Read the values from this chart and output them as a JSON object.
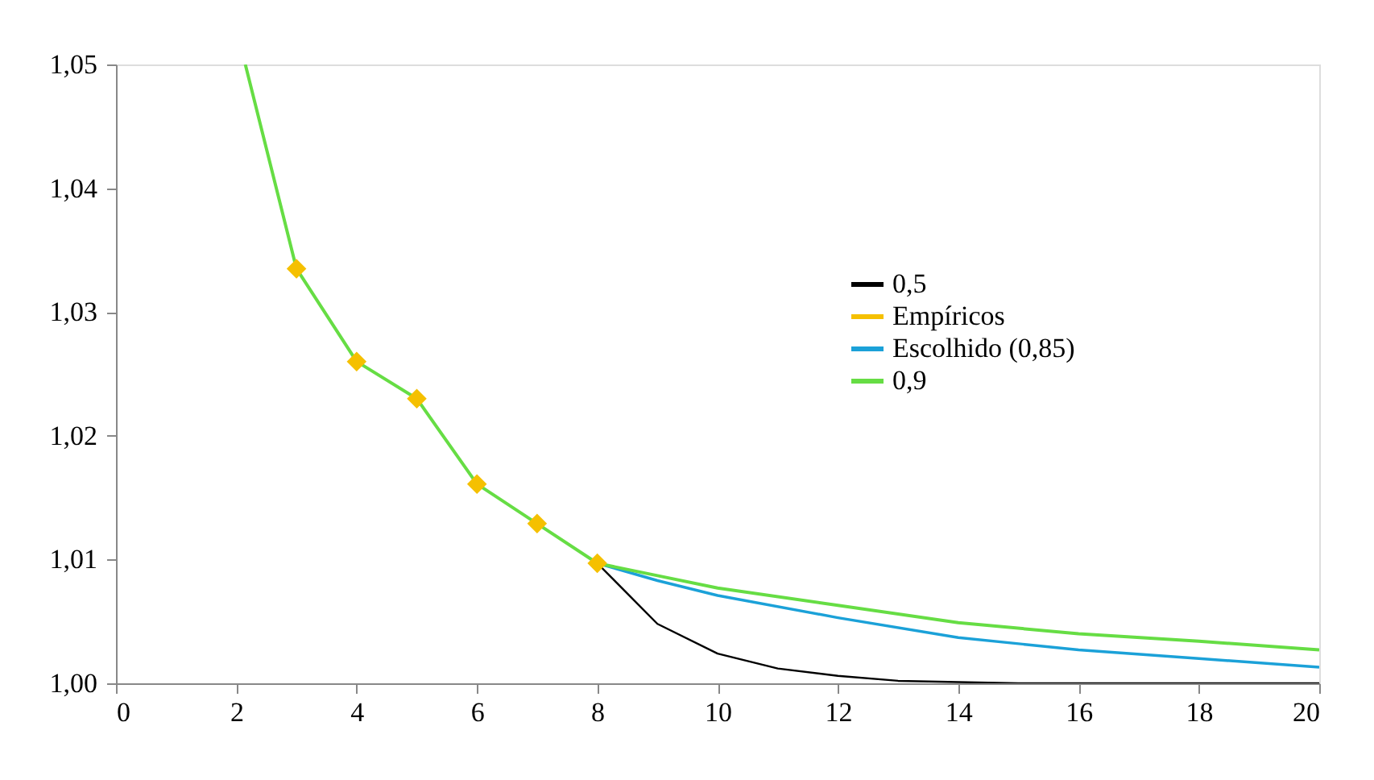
{
  "chart_data": {
    "type": "line",
    "legend": "right",
    "grid": false,
    "xlim": [
      0,
      20
    ],
    "xticks": [
      0,
      2,
      4,
      6,
      8,
      10,
      12,
      14,
      16,
      18,
      20
    ],
    "ylim": [
      1.0,
      1.05
    ],
    "yticks": [
      {
        "value": 1.0,
        "label": "1,00"
      },
      {
        "value": 1.01,
        "label": "1,01"
      },
      {
        "value": 1.02,
        "label": "1,02"
      },
      {
        "value": 1.03,
        "label": "1,03"
      },
      {
        "value": 1.04,
        "label": "1,04"
      },
      {
        "value": 1.05,
        "label": "1,05"
      }
    ],
    "series": [
      {
        "name": "0,5",
        "color": "#000000",
        "x": [
          8,
          9,
          10,
          11,
          12,
          13,
          14,
          15,
          16,
          17,
          18,
          19,
          20
        ],
        "values": [
          1.0097,
          1.0048,
          1.0024,
          1.0012,
          1.0006,
          1.0002,
          1.0001,
          1.0,
          1.0,
          1.0,
          1.0,
          1.0,
          1.0
        ]
      },
      {
        "name": "Empíricos",
        "type": "scatter",
        "color": "#f5c000",
        "marker": "diamond",
        "x": [
          3,
          4,
          5,
          6,
          7,
          8
        ],
        "values": [
          1.0335,
          1.026,
          1.023,
          1.0161,
          1.0129,
          1.0097
        ]
      },
      {
        "name": "Escolhido (0,85)",
        "color": "#1ba1d8",
        "x": [
          8,
          9,
          10,
          12,
          14,
          16,
          18,
          20
        ],
        "values": [
          1.0097,
          1.0083,
          1.0071,
          1.0053,
          1.0037,
          1.0027,
          1.002,
          1.0013
        ]
      },
      {
        "name": "0,9",
        "color": "#66dd44",
        "x": [
          2.15,
          3,
          4,
          5,
          6,
          7,
          8,
          9,
          10,
          12,
          14,
          16,
          18,
          20
        ],
        "values": [
          1.05,
          1.0335,
          1.026,
          1.023,
          1.0161,
          1.0129,
          1.0097,
          1.0087,
          1.0077,
          1.0063,
          1.0049,
          1.004,
          1.0034,
          1.0027
        ]
      }
    ]
  }
}
